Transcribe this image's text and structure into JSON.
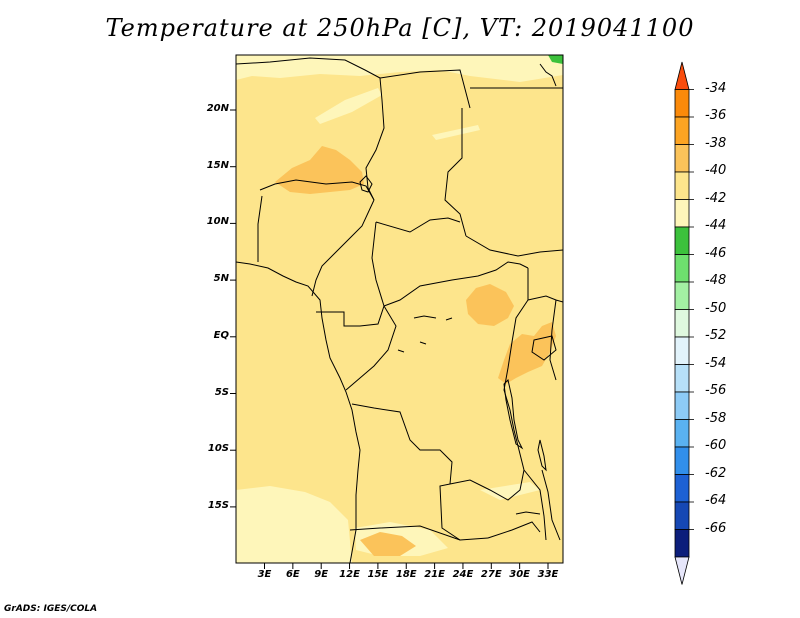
{
  "title": "Temperature at 250hPa [C], VT: 2019041100",
  "credit": "GrADS: IGES/COLA",
  "map": {
    "lat_labels": [
      "20N",
      "15N",
      "10N",
      "5N",
      "EQ",
      "5S",
      "10S",
      "15S"
    ],
    "lon_labels": [
      "3E",
      "6E",
      "9E",
      "12E",
      "15E",
      "18E",
      "21E",
      "24E",
      "27E",
      "30E",
      "33E"
    ],
    "base_color": "#fde58c",
    "field_colors": {
      "-40_to_-38": "#fbc35a",
      "-42_to_-40": "#fde58c",
      "-44_to_-42": "#fef6ba",
      "-46_to_-44": "#3cc13c"
    }
  },
  "colorbar": {
    "labels": [
      "-34",
      "-36",
      "-38",
      "-40",
      "-42",
      "-44",
      "-46",
      "-48",
      "-50",
      "-52",
      "-54",
      "-56",
      "-58",
      "-60",
      "-62",
      "-64",
      "-66"
    ],
    "colors": [
      "#f94d0d",
      "#fb8a0a",
      "#fca423",
      "#fbc35a",
      "#fde58c",
      "#fef6ba",
      "#3cc13c",
      "#6ee06e",
      "#a3f0a3",
      "#dff8df",
      "#e2f3fb",
      "#b7e0f8",
      "#8dcbf6",
      "#5ab2f1",
      "#318feb",
      "#1d61d4",
      "#1648b4",
      "#0c1e7b",
      "#e6e6fa"
    ]
  }
}
